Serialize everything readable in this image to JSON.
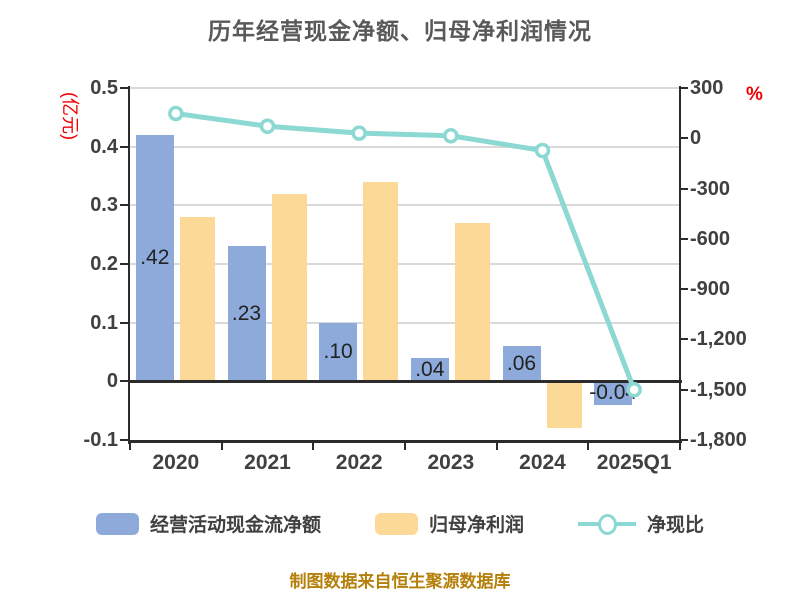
{
  "title": "历年经营现金净额、归母净利润情况",
  "caption": "制图数据来自恒生聚源数据库",
  "axes": {
    "left": {
      "unit": "(亿元)",
      "unit_color": "#f40000",
      "ticks": [
        "0.5",
        "0.4",
        "0.3",
        "0.2",
        "0.1",
        "0",
        "-0.1"
      ],
      "tick_values": [
        0.5,
        0.4,
        0.3,
        0.2,
        0.1,
        0,
        -0.1
      ]
    },
    "right": {
      "unit": "%",
      "unit_color": "#f40000",
      "ticks": [
        "300",
        "0",
        "-300",
        "-600",
        "-900",
        "-1,200",
        "-1,500",
        "-1,800"
      ],
      "tick_values": [
        300,
        0,
        -300,
        -600,
        -900,
        -1200,
        -1500,
        -1800
      ]
    }
  },
  "chart_data": {
    "type": "bar",
    "categories": [
      "2020",
      "2021",
      "2022",
      "2023",
      "2024",
      "2025Q1"
    ],
    "series": [
      {
        "name": "经营活动现金流净额",
        "type": "bar",
        "axis": "left",
        "color": "#8eaadb",
        "values": [
          0.42,
          0.23,
          0.1,
          0.04,
          0.06,
          -0.04
        ],
        "display_labels": [
          ".42",
          ".23",
          ".10",
          ".04",
          ".06",
          "-0.04"
        ]
      },
      {
        "name": "归母净利润",
        "type": "bar",
        "axis": "left",
        "color": "#fcd996",
        "values": [
          0.28,
          0.32,
          0.34,
          0.27,
          -0.08,
          0.003
        ]
      },
      {
        "name": "净现比",
        "type": "line",
        "axis": "right",
        "color": "#8cd8d3",
        "values": [
          148,
          72,
          31,
          15,
          -73,
          -1500
        ]
      }
    ],
    "left_ylabel": "(亿元)",
    "right_ylabel": "%",
    "left_ylim": [
      -0.1,
      0.5
    ],
    "right_ylim": [
      -1800,
      300
    ],
    "grid": true,
    "legend_position": "bottom"
  }
}
